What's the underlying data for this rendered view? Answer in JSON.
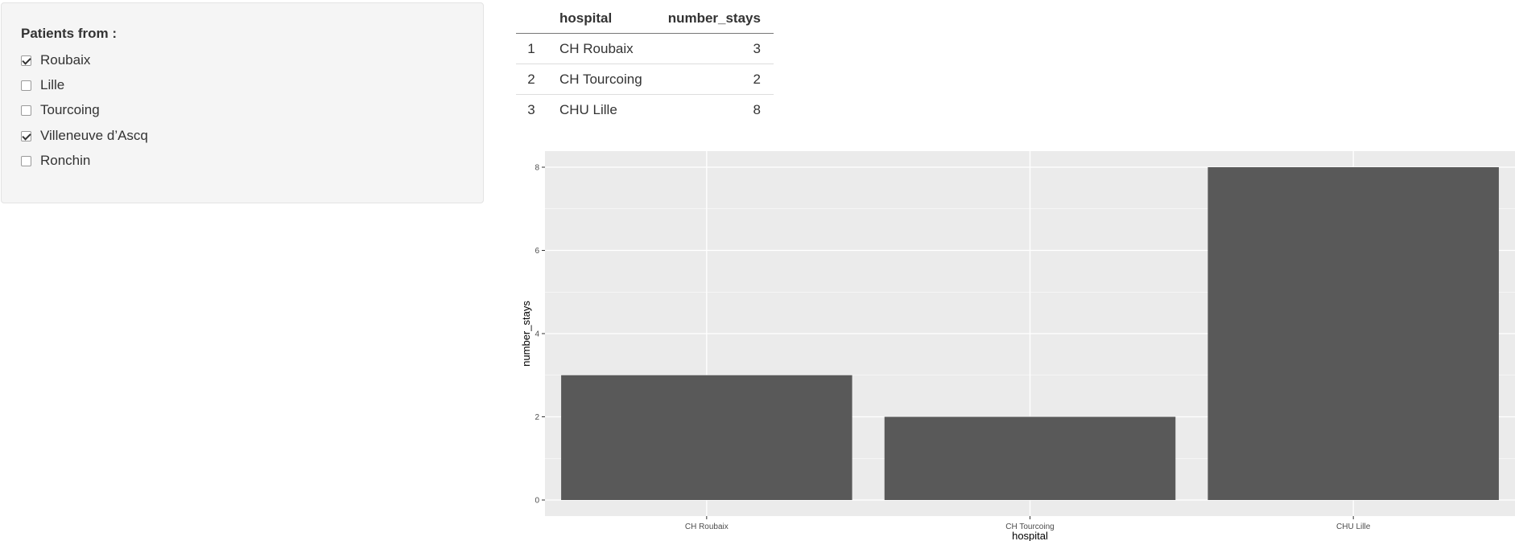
{
  "sidebar": {
    "title": "Patients from :",
    "options": [
      {
        "label": "Roubaix",
        "checked": true
      },
      {
        "label": "Lille",
        "checked": false
      },
      {
        "label": "Tourcoing",
        "checked": false
      },
      {
        "label": "Villeneuve d’Ascq",
        "checked": true
      },
      {
        "label": "Ronchin",
        "checked": false
      }
    ]
  },
  "table": {
    "columns": [
      "",
      "hospital",
      "number_stays"
    ],
    "rows": [
      {
        "index": "1",
        "hospital": "CH Roubaix",
        "number_stays": "3"
      },
      {
        "index": "2",
        "hospital": "CH Tourcoing",
        "number_stays": "2"
      },
      {
        "index": "3",
        "hospital": "CHU Lille",
        "number_stays": "8"
      }
    ]
  },
  "chart_data": {
    "type": "bar",
    "categories": [
      "CH Roubaix",
      "CH Tourcoing",
      "CHU Lille"
    ],
    "values": [
      3,
      2,
      8
    ],
    "title": "",
    "xlabel": "hospital",
    "ylabel": "number_stays",
    "ylim": [
      0,
      8
    ],
    "yticks": [
      0,
      2,
      4,
      6,
      8
    ],
    "grid": true,
    "colors": {
      "bar": "#595959",
      "panel": "#ebebeb",
      "grid": "#ffffff"
    }
  }
}
